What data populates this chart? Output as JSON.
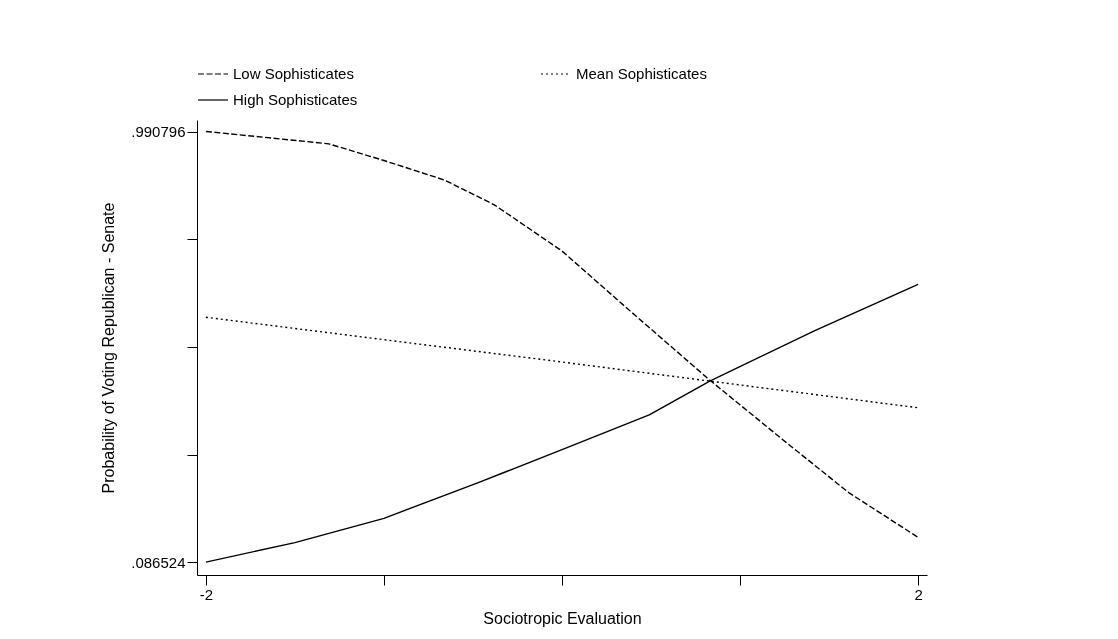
{
  "chart_data": {
    "type": "line",
    "xlabel": "Sociotropic Evaluation",
    "ylabel": "Probability of Voting Republican - Senate",
    "xlim": [
      -2.05,
      2.05
    ],
    "ylim": [
      0.06,
      1.015
    ],
    "xticks": [
      -2,
      {
        "value": -1,
        "label": null
      },
      {
        "value": 0,
        "label": null
      },
      {
        "value": 1,
        "label": null
      },
      2
    ],
    "yticks": [
      {
        "value": 0.086524,
        "label": ".086524"
      },
      {
        "value": 0.312592,
        "label": null
      },
      {
        "value": 0.53866,
        "label": null
      },
      {
        "value": 0.764728,
        "label": null
      },
      {
        "value": 0.990796,
        "label": ".990796"
      }
    ],
    "grid": false,
    "legend": "top",
    "marker": "none",
    "series": [
      {
        "name": "Low Sophisticates",
        "color": "#000000",
        "line_style": "dashed",
        "x": [
          -2,
          -1.31,
          -1,
          -0.66,
          -0.38,
          0,
          0.38,
          0.83,
          1.24,
          1.61,
          2
        ],
        "values": [
          0.991,
          0.965,
          0.93,
          0.889,
          0.837,
          0.74,
          0.615,
          0.469,
          0.344,
          0.233,
          0.139
        ]
      },
      {
        "name": "Mean Sophisticates",
        "color": "#000000",
        "line_style": "dotted",
        "x": [
          -2,
          0,
          0.83,
          2
        ],
        "values": [
          0.601,
          0.507,
          0.467,
          0.411
        ]
      },
      {
        "name": "High Sophisticates",
        "color": "#000000",
        "line_style": "solid",
        "x": [
          -2,
          -1.5,
          -1,
          -0.47,
          0,
          0.49,
          0.83,
          1.42,
          2
        ],
        "values": [
          0.087,
          0.128,
          0.179,
          0.254,
          0.323,
          0.396,
          0.467,
          0.573,
          0.67
        ]
      }
    ]
  }
}
